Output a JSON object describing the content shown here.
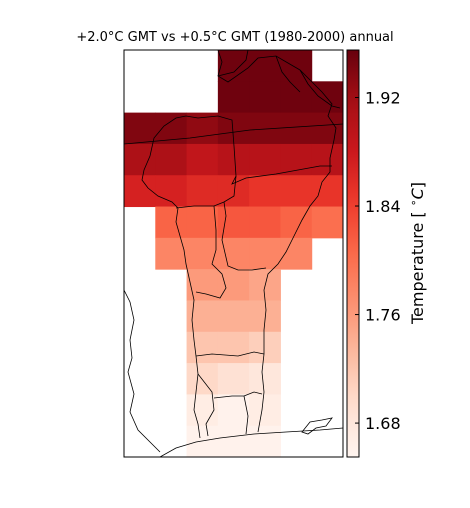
{
  "chart_data": {
    "type": "heatmap",
    "title": "+2.0°C GMT vs +0.5°C GMT (1980-2000) annual",
    "colorbar": {
      "label": "Temperature [$^\\circ C$]",
      "vmin": 1.655,
      "vmax": 1.955,
      "ticks": [
        1.68,
        1.76,
        1.84,
        1.92
      ],
      "tick_labels": [
        "1.68",
        "1.76",
        "1.84",
        "1.92"
      ],
      "colormap": "Reds"
    },
    "grid": {
      "columns": 7,
      "rows": 13,
      "values": [
        [
          null,
          null,
          null,
          1.95,
          1.95,
          1.95,
          null
        ],
        [
          null,
          null,
          null,
          1.95,
          1.95,
          1.95,
          1.95
        ],
        [
          1.94,
          1.94,
          1.93,
          1.94,
          1.94,
          1.94,
          1.94
        ],
        [
          1.91,
          1.91,
          1.89,
          1.9,
          1.9,
          1.9,
          1.9
        ],
        [
          1.87,
          1.87,
          1.86,
          1.86,
          1.85,
          1.85,
          1.85
        ],
        [
          null,
          1.81,
          1.81,
          1.82,
          1.82,
          1.81,
          1.8
        ],
        [
          null,
          1.78,
          1.78,
          1.78,
          1.78,
          1.78,
          null
        ],
        [
          null,
          null,
          1.76,
          1.76,
          1.75,
          null,
          null
        ],
        [
          null,
          null,
          1.74,
          1.74,
          1.74,
          null,
          null
        ],
        [
          null,
          null,
          1.72,
          1.72,
          1.71,
          null,
          null
        ],
        [
          null,
          null,
          1.7,
          1.69,
          1.68,
          null,
          null
        ],
        [
          null,
          null,
          1.67,
          1.66,
          1.67,
          null,
          null
        ],
        [
          null,
          null,
          1.66,
          1.66,
          1.66,
          null,
          null
        ]
      ]
    }
  },
  "colors": {
    "frame": "#000000",
    "background": "#ffffff",
    "boundary": "#000000"
  }
}
